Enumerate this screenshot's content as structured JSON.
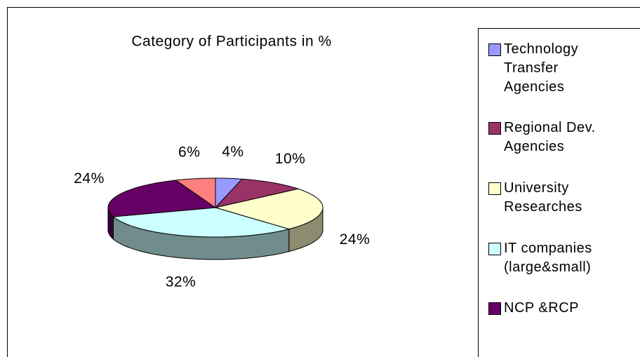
{
  "chart_data": {
    "type": "pie3d",
    "title": "Category of Participants in %",
    "categories": [
      "Technology Transfer Agencies",
      "Regional Dev. Agencies",
      "University Researches",
      "IT companies (large&small)",
      "NCP &RCP",
      null
    ],
    "values": [
      4,
      10,
      24,
      32,
      24,
      6
    ],
    "value_labels": [
      "4%",
      "10%",
      "24%",
      "32%",
      "24%",
      "6%"
    ],
    "colors": [
      "#9999ff",
      "#993366",
      "#ffffcc",
      "#ccffff",
      "#660066",
      "#ff8080"
    ]
  }
}
